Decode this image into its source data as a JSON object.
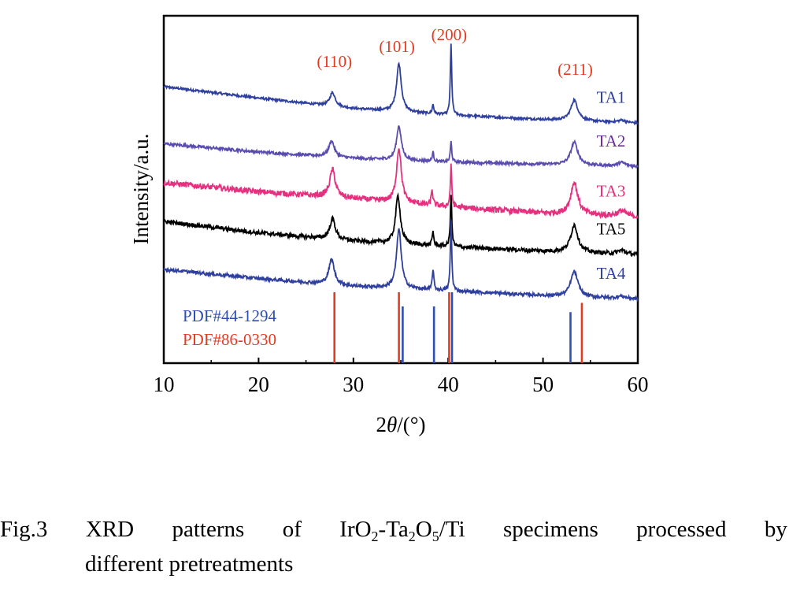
{
  "chart_data": {
    "type": "line",
    "xlabel_prefix": "2",
    "xlabel_symbol": "θ",
    "xlabel_suffix": "/(°)",
    "ylabel": "Intensity/a.u.",
    "xlim": [
      10,
      60
    ],
    "xticks": [
      10,
      20,
      30,
      40,
      50,
      60
    ],
    "series": [
      {
        "name": "TA1",
        "color": "#2e3f9e",
        "offset": 4.0,
        "baseline": [
          [
            10,
            1.0
          ],
          [
            20,
            0.75
          ],
          [
            30,
            0.52
          ],
          [
            40,
            0.38
          ],
          [
            50,
            0.28
          ],
          [
            60,
            0.2
          ]
        ],
        "peaks": [
          [
            27.8,
            0.3,
            0.35
          ],
          [
            34.8,
            1.05,
            0.3
          ],
          [
            38.4,
            0.2,
            0.1
          ],
          [
            40.3,
            1.55,
            0.09
          ],
          [
            53.3,
            0.45,
            0.45
          ],
          [
            58.3,
            0.05,
            0.5
          ]
        ],
        "noise": 0.025
      },
      {
        "name": "TA2",
        "color": "#5a4cae",
        "offset": 3.15,
        "baseline": [
          [
            10,
            0.6
          ],
          [
            20,
            0.42
          ],
          [
            30,
            0.28
          ],
          [
            40,
            0.2
          ],
          [
            50,
            0.15
          ],
          [
            60,
            0.1
          ]
        ],
        "peaks": [
          [
            27.7,
            0.35,
            0.35
          ],
          [
            34.8,
            0.75,
            0.3
          ],
          [
            38.4,
            0.2,
            0.1
          ],
          [
            40.3,
            0.45,
            0.09
          ],
          [
            53.3,
            0.5,
            0.45
          ],
          [
            58.3,
            0.08,
            0.5
          ]
        ],
        "noise": 0.03
      },
      {
        "name": "TA3",
        "color": "#e4307f",
        "offset": 2.05,
        "baseline": [
          [
            10,
            0.85
          ],
          [
            20,
            0.65
          ],
          [
            30,
            0.5
          ],
          [
            40,
            0.32
          ],
          [
            50,
            0.18
          ],
          [
            60,
            0.1
          ]
        ],
        "peaks": [
          [
            27.8,
            0.6,
            0.35
          ],
          [
            34.8,
            1.2,
            0.3
          ],
          [
            38.3,
            0.35,
            0.1
          ],
          [
            40.3,
            0.9,
            0.09
          ],
          [
            53.3,
            0.7,
            0.45
          ],
          [
            58.3,
            0.12,
            0.5
          ]
        ],
        "noise": 0.06
      },
      {
        "name": "TA5",
        "color": "#000000",
        "offset": 1.2,
        "baseline": [
          [
            10,
            0.85
          ],
          [
            20,
            0.6
          ],
          [
            30,
            0.42
          ],
          [
            40,
            0.3
          ],
          [
            50,
            0.2
          ],
          [
            60,
            0.12
          ]
        ],
        "peaks": [
          [
            27.8,
            0.45,
            0.35
          ],
          [
            34.7,
            1.05,
            0.3
          ],
          [
            38.4,
            0.3,
            0.1
          ],
          [
            40.3,
            1.15,
            0.09
          ],
          [
            53.3,
            0.6,
            0.45
          ],
          [
            58.3,
            0.08,
            0.5
          ]
        ],
        "noise": 0.045
      },
      {
        "name": "TA4",
        "color": "#2e3f9e",
        "offset": 0.25,
        "baseline": [
          [
            10,
            0.75
          ],
          [
            20,
            0.55
          ],
          [
            30,
            0.38
          ],
          [
            40,
            0.28
          ],
          [
            50,
            0.18
          ],
          [
            60,
            0.1
          ]
        ],
        "peaks": [
          [
            27.7,
            0.55,
            0.35
          ],
          [
            34.8,
            1.3,
            0.3
          ],
          [
            38.4,
            0.45,
            0.1
          ],
          [
            40.3,
            1.55,
            0.09
          ],
          [
            53.3,
            0.55,
            0.45
          ],
          [
            58.3,
            0.05,
            0.5
          ]
        ],
        "noise": 0.035
      }
    ],
    "series_label_colors": [
      "#2e3f9e",
      "#6a2e9a",
      "#e4307f",
      "#000000",
      "#2e3f9e"
    ],
    "reference_patterns": [
      {
        "name": "PDF#44-1294",
        "color": "#2e4fb0",
        "lines": [
          [
            35.2,
            0.8
          ],
          [
            38.5,
            0.8
          ],
          [
            40.4,
            1.0
          ],
          [
            52.9,
            0.72
          ]
        ]
      },
      {
        "name": "PDF#86-0330",
        "color": "#e53a22",
        "lines": [
          [
            28.0,
            1.0
          ],
          [
            34.8,
            1.0
          ],
          [
            40.1,
            1.0
          ],
          [
            54.1,
            0.85
          ]
        ]
      }
    ],
    "peak_labels": [
      {
        "text": "(110)",
        "x": 28.0
      },
      {
        "text": "(101)",
        "x": 34.6
      },
      {
        "text": "(200)",
        "x": 40.1
      },
      {
        "text": "(211)",
        "x": 53.4
      }
    ],
    "peak_label_color": "#e53a22",
    "grid": false
  },
  "caption": {
    "label": "Fig.3",
    "line1_words": [
      "XRD",
      "patterns",
      "of"
    ],
    "formula_part1": "IrO",
    "formula_sub1": "2",
    "formula_part2": "-Ta",
    "formula_sub2": "2",
    "formula_part3": "O",
    "formula_sub3": "5",
    "formula_part4": "/Ti",
    "line1_words_after": [
      "specimens",
      "processed",
      "by"
    ],
    "line2": "different pretreatments"
  }
}
